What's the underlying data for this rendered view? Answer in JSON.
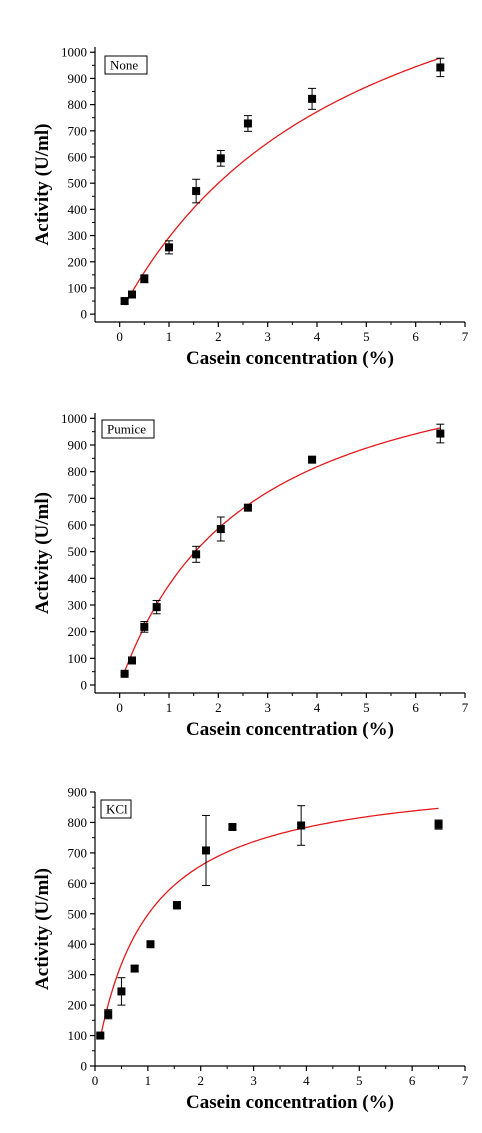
{
  "colors": {
    "fit_line": "#e41a1c",
    "points": "#000000",
    "axes": "#000000"
  },
  "chart_data": [
    {
      "type": "scatter",
      "legend": "None",
      "xlabel": "Casein concentration (%)",
      "ylabel": "Activity (U/ml)",
      "xlim": [
        -0.5,
        7
      ],
      "ylim": [
        -30,
        1020
      ],
      "xticks": [
        0,
        1,
        2,
        3,
        4,
        5,
        6,
        7
      ],
      "yticks": [
        0,
        100,
        200,
        300,
        400,
        500,
        600,
        700,
        800,
        900,
        1000
      ],
      "series": [
        {
          "x": [
            0.1,
            0.25,
            0.5,
            1.0,
            1.55,
            2.05,
            2.6,
            3.9,
            6.5
          ],
          "y": [
            50,
            75,
            135,
            255,
            470,
            595,
            728,
            822,
            942
          ],
          "error": [
            10,
            10,
            15,
            25,
            45,
            30,
            30,
            40,
            35
          ]
        }
      ],
      "fit": {
        "vmax": 1700,
        "km": 4.8
      }
    },
    {
      "type": "scatter",
      "legend": "Pumice",
      "xlabel": "Casein concentration (%)",
      "ylabel": "Activity (U/ml)",
      "xlim": [
        -0.5,
        7
      ],
      "ylim": [
        -30,
        1020
      ],
      "xticks": [
        0,
        1,
        2,
        3,
        4,
        5,
        6,
        7
      ],
      "yticks": [
        0,
        100,
        200,
        300,
        400,
        500,
        600,
        700,
        800,
        900,
        1000
      ],
      "series": [
        {
          "x": [
            0.1,
            0.25,
            0.5,
            0.75,
            1.55,
            2.05,
            2.6,
            3.9,
            6.5
          ],
          "y": [
            42,
            92,
            218,
            292,
            490,
            585,
            665,
            845,
            943
          ],
          "error": [
            5,
            8,
            20,
            25,
            30,
            45,
            10,
            12,
            35
          ]
        }
      ],
      "fit": {
        "vmax": 1350,
        "km": 2.6
      }
    },
    {
      "type": "scatter",
      "legend": "KCl",
      "xlabel": "Casein concentration (%)",
      "ylabel": "Activity (U/ml)",
      "xlim": [
        0,
        7
      ],
      "ylim": [
        0,
        900
      ],
      "xticks": [
        0,
        1,
        2,
        3,
        4,
        5,
        6,
        7
      ],
      "yticks": [
        0,
        100,
        200,
        300,
        400,
        500,
        600,
        700,
        800,
        900
      ],
      "series": [
        {
          "x": [
            0.1,
            0.25,
            0.5,
            0.75,
            1.05,
            1.55,
            2.1,
            2.6,
            3.9,
            6.5
          ],
          "y": [
            100,
            170,
            245,
            320,
            400,
            528,
            708,
            785,
            790,
            793
          ],
          "error": [
            5,
            15,
            45,
            10,
            10,
            12,
            115,
            8,
            65,
            15
          ]
        }
      ],
      "fit": {
        "vmax": 970,
        "km": 0.95
      }
    }
  ]
}
